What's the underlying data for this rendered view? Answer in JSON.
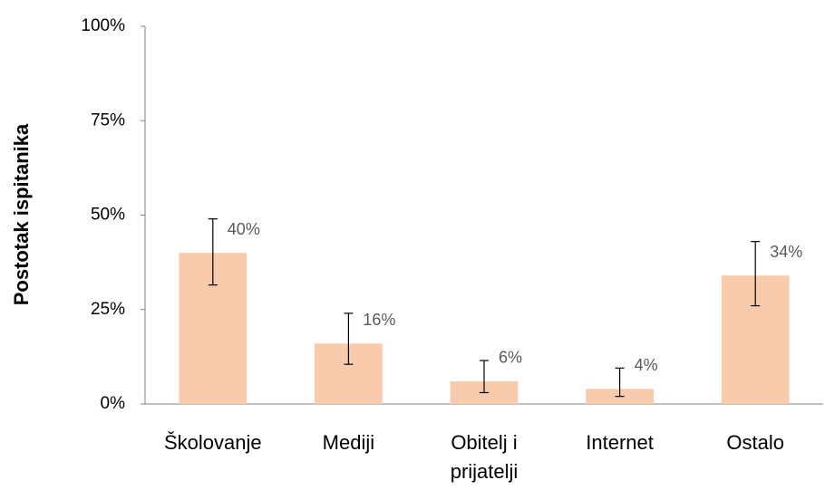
{
  "chart_data": {
    "type": "bar",
    "y_label": "Postotak ispitanika",
    "categories": [
      "Školovanje",
      "Mediji",
      "Obitelj i prijatelji",
      "Internet",
      "Ostalo"
    ],
    "values": [
      40,
      16,
      6,
      4,
      34
    ],
    "value_labels": [
      "40%",
      "16%",
      "6%",
      "4%",
      "34%"
    ],
    "ci_low": [
      31.5,
      10.5,
      3,
      2,
      26
    ],
    "ci_high": [
      49,
      24,
      11.5,
      9.5,
      43
    ],
    "color": "#f8cbad",
    "ylim": [
      0,
      100
    ],
    "yticks": [
      {
        "value": 0,
        "label": "0%"
      },
      {
        "value": 25,
        "label": "25%"
      },
      {
        "value": 50,
        "label": "50%"
      },
      {
        "value": 75,
        "label": "75%"
      },
      {
        "value": 100,
        "label": "100%"
      }
    ],
    "grid": false
  }
}
